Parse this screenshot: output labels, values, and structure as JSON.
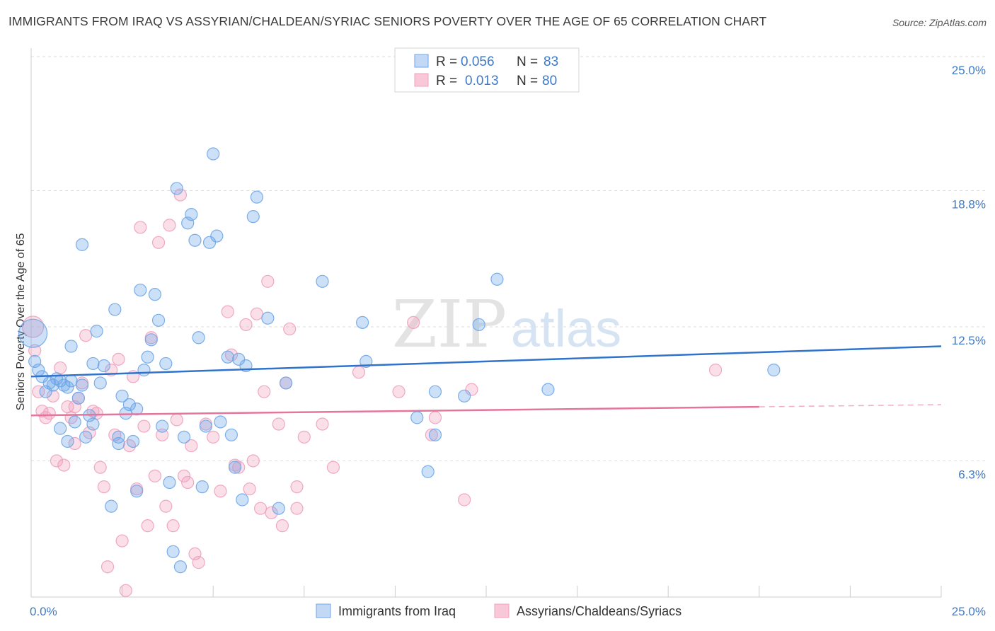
{
  "header": {
    "title": "IMMIGRANTS FROM IRAQ VS ASSYRIAN/CHALDEAN/SYRIAC SENIORS POVERTY OVER THE AGE OF 65 CORRELATION CHART",
    "source": "Source: ZipAtlas.com"
  },
  "watermark": {
    "zip": "ZIP",
    "atlas": "atlas"
  },
  "colors": {
    "blue": "#6ea6e8",
    "blue_line": "#2f73cc",
    "pink": "#f0a0bc",
    "pink_line": "#e4759c",
    "axis_text": "#3f7ac9",
    "grid": "#dddddd"
  },
  "chart_data": {
    "type": "scatter",
    "title": "IMMIGRANTS FROM IRAQ VS ASSYRIAN/CHALDEAN/SYRIAC SENIORS POVERTY OVER THE AGE OF 65 CORRELATION CHART",
    "xlabel": "",
    "ylabel": "Seniors Poverty Over the Age of 65",
    "xlim": [
      0,
      25
    ],
    "ylim": [
      0,
      25
    ],
    "x_tick_labels": [
      "0.0%",
      "25.0%"
    ],
    "y_ticks": [
      6.3,
      12.5,
      18.8,
      25.0
    ],
    "y_tick_labels": [
      "6.3%",
      "12.5%",
      "18.8%",
      "25.0%"
    ],
    "legend": {
      "placement": "top-center",
      "entries": [
        {
          "r_label": "R =",
          "r_value": "0.056",
          "n_label": "N =",
          "n_value": "83"
        },
        {
          "r_label": "R =",
          "r_value": "0.013",
          "n_label": "N =",
          "n_value": "80"
        }
      ]
    },
    "bottom_legend": [
      "Immigrants from Iraq",
      "Assyrians/Chaldeans/Syriacs"
    ],
    "series": [
      {
        "name": "Immigrants from Iraq",
        "trend": {
          "x": [
            0,
            25
          ],
          "y": [
            10.2,
            11.6
          ]
        },
        "points": [
          [
            0.05,
            12.2,
            3
          ],
          [
            0.1,
            10.9,
            1
          ],
          [
            0.2,
            10.5,
            1
          ],
          [
            0.3,
            10.2,
            1
          ],
          [
            0.4,
            9.5,
            1
          ],
          [
            0.5,
            9.9,
            1
          ],
          [
            0.6,
            9.8,
            1
          ],
          [
            0.7,
            10.1,
            1
          ],
          [
            0.8,
            10.0,
            1
          ],
          [
            0.9,
            9.8,
            1
          ],
          [
            1.0,
            9.7,
            1
          ],
          [
            1.1,
            10.0,
            1
          ],
          [
            1.2,
            8.1,
            1
          ],
          [
            1.3,
            9.2,
            1
          ],
          [
            1.4,
            9.8,
            1
          ],
          [
            0.8,
            7.8,
            1
          ],
          [
            1.0,
            7.2,
            1
          ],
          [
            1.5,
            7.4,
            1
          ],
          [
            1.7,
            10.8,
            1
          ],
          [
            1.8,
            12.3,
            1
          ],
          [
            2.0,
            10.7,
            1
          ],
          [
            1.1,
            11.6,
            1
          ],
          [
            1.4,
            16.3,
            1
          ],
          [
            1.6,
            8.4,
            1
          ],
          [
            1.7,
            8.0,
            1
          ],
          [
            1.9,
            9.9,
            1
          ],
          [
            2.3,
            13.3,
            1
          ],
          [
            2.4,
            7.4,
            1
          ],
          [
            2.5,
            9.3,
            1
          ],
          [
            2.6,
            8.5,
            1
          ],
          [
            2.7,
            8.9,
            1
          ],
          [
            2.8,
            7.2,
            1
          ],
          [
            2.9,
            8.7,
            1
          ],
          [
            2.2,
            4.2,
            1
          ],
          [
            2.4,
            7.1,
            1
          ],
          [
            2.9,
            4.9,
            1
          ],
          [
            3.0,
            14.2,
            1
          ],
          [
            3.1,
            10.5,
            1
          ],
          [
            3.2,
            11.1,
            1
          ],
          [
            3.3,
            11.9,
            1
          ],
          [
            3.4,
            14.0,
            1
          ],
          [
            3.5,
            12.8,
            1
          ],
          [
            3.6,
            7.9,
            1
          ],
          [
            3.7,
            10.8,
            1
          ],
          [
            3.8,
            5.3,
            1
          ],
          [
            3.9,
            2.1,
            1
          ],
          [
            4.0,
            18.9,
            1
          ],
          [
            4.1,
            1.4,
            1
          ],
          [
            4.2,
            7.4,
            1
          ],
          [
            4.3,
            17.3,
            1
          ],
          [
            4.4,
            17.7,
            1
          ],
          [
            4.5,
            16.5,
            1
          ],
          [
            4.6,
            12.0,
            1
          ],
          [
            4.7,
            5.1,
            1
          ],
          [
            4.8,
            7.9,
            1
          ],
          [
            4.9,
            16.4,
            1
          ],
          [
            5.0,
            20.5,
            1
          ],
          [
            5.1,
            16.7,
            1
          ],
          [
            5.2,
            8.1,
            1
          ],
          [
            5.4,
            11.1,
            1
          ],
          [
            5.5,
            7.5,
            1
          ],
          [
            5.6,
            6.0,
            1
          ],
          [
            5.7,
            11.0,
            1
          ],
          [
            5.8,
            4.5,
            1
          ],
          [
            5.9,
            10.7,
            1
          ],
          [
            6.1,
            17.6,
            1
          ],
          [
            6.2,
            18.5,
            1
          ],
          [
            6.5,
            12.9,
            1
          ],
          [
            6.8,
            4.1,
            1
          ],
          [
            7.0,
            9.9,
            1
          ],
          [
            8.0,
            14.6,
            1
          ],
          [
            9.1,
            12.7,
            1
          ],
          [
            9.2,
            10.9,
            1
          ],
          [
            10.6,
            8.3,
            1
          ],
          [
            10.9,
            5.8,
            1
          ],
          [
            11.1,
            9.5,
            1
          ],
          [
            11.1,
            7.5,
            1
          ],
          [
            11.9,
            9.3,
            1
          ],
          [
            12.3,
            12.6,
            1
          ],
          [
            12.8,
            14.7,
            1
          ],
          [
            14.2,
            9.6,
            1
          ],
          [
            20.4,
            10.5,
            1
          ]
        ]
      },
      {
        "name": "Assyrians/Chaldeans/Syriacs",
        "trend": {
          "x": [
            0,
            20
          ],
          "y": [
            8.4,
            8.8
          ]
        },
        "trend_dashed": {
          "x": [
            20,
            25
          ],
          "y": [
            8.8,
            8.9
          ]
        },
        "points": [
          [
            0.05,
            12.5,
            2
          ],
          [
            0.1,
            11.4,
            1
          ],
          [
            0.2,
            9.5,
            1
          ],
          [
            0.3,
            8.6,
            1
          ],
          [
            0.4,
            8.3,
            1
          ],
          [
            0.5,
            8.5,
            1
          ],
          [
            0.6,
            9.3,
            1
          ],
          [
            0.7,
            6.3,
            1
          ],
          [
            0.8,
            10.6,
            1
          ],
          [
            0.9,
            6.1,
            1
          ],
          [
            1.0,
            8.8,
            1
          ],
          [
            1.1,
            8.3,
            1
          ],
          [
            1.2,
            7.1,
            1
          ],
          [
            1.3,
            9.2,
            1
          ],
          [
            1.4,
            9.9,
            1
          ],
          [
            1.5,
            12.1,
            1
          ],
          [
            1.6,
            7.6,
            1
          ],
          [
            1.7,
            8.6,
            1
          ],
          [
            1.8,
            8.5,
            1
          ],
          [
            1.9,
            6.0,
            1
          ],
          [
            2.0,
            5.1,
            1
          ],
          [
            2.1,
            1.4,
            1
          ],
          [
            2.2,
            10.5,
            1
          ],
          [
            2.3,
            7.5,
            1
          ],
          [
            2.4,
            11.0,
            1
          ],
          [
            2.5,
            2.6,
            1
          ],
          [
            2.6,
            0.3,
            1
          ],
          [
            2.7,
            7.0,
            1
          ],
          [
            2.8,
            10.2,
            1
          ],
          [
            2.9,
            5.0,
            1
          ],
          [
            3.0,
            17.1,
            1
          ],
          [
            3.1,
            7.9,
            1
          ],
          [
            3.2,
            3.3,
            1
          ],
          [
            3.3,
            12.0,
            1
          ],
          [
            3.4,
            5.6,
            1
          ],
          [
            3.5,
            16.4,
            1
          ],
          [
            3.6,
            7.5,
            1
          ],
          [
            3.7,
            4.2,
            1
          ],
          [
            3.8,
            17.2,
            1
          ],
          [
            3.9,
            3.3,
            1
          ],
          [
            4.0,
            8.2,
            1
          ],
          [
            4.1,
            18.6,
            1
          ],
          [
            4.2,
            5.6,
            1
          ],
          [
            4.3,
            5.3,
            1
          ],
          [
            4.4,
            7.0,
            1
          ],
          [
            4.5,
            2.0,
            1
          ],
          [
            4.6,
            1.6,
            1
          ],
          [
            4.8,
            8.0,
            1
          ],
          [
            5.0,
            7.4,
            1
          ],
          [
            5.2,
            4.9,
            1
          ],
          [
            5.4,
            13.2,
            1
          ],
          [
            5.5,
            11.2,
            1
          ],
          [
            5.6,
            6.1,
            1
          ],
          [
            5.7,
            6.0,
            1
          ],
          [
            5.9,
            12.6,
            1
          ],
          [
            6.0,
            5.0,
            1
          ],
          [
            6.1,
            6.3,
            1
          ],
          [
            6.3,
            4.1,
            1
          ],
          [
            6.4,
            9.5,
            1
          ],
          [
            6.5,
            14.6,
            1
          ],
          [
            6.6,
            3.9,
            1
          ],
          [
            6.8,
            8.0,
            1
          ],
          [
            6.9,
            3.3,
            1
          ],
          [
            7.0,
            9.9,
            1
          ],
          [
            7.1,
            12.4,
            1
          ],
          [
            7.3,
            4.1,
            1
          ],
          [
            7.3,
            5.1,
            1
          ],
          [
            7.5,
            7.4,
            1
          ],
          [
            8.0,
            8.0,
            1
          ],
          [
            8.3,
            6.0,
            1
          ],
          [
            9.0,
            10.4,
            1
          ],
          [
            10.1,
            9.5,
            1
          ],
          [
            11.1,
            8.3,
            1
          ],
          [
            10.5,
            12.7,
            1
          ],
          [
            11.0,
            7.5,
            1
          ],
          [
            11.9,
            4.5,
            1
          ],
          [
            12.1,
            9.6,
            1
          ],
          [
            18.8,
            10.5,
            1
          ],
          [
            6.2,
            13.1,
            1
          ],
          [
            1.2,
            8.8,
            1
          ]
        ]
      }
    ]
  }
}
